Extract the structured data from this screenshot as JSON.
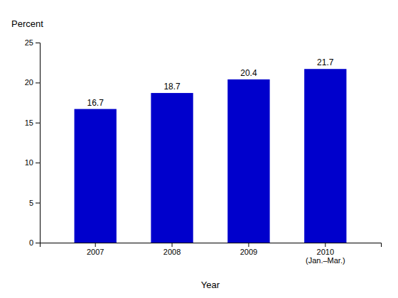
{
  "chart_data": {
    "type": "bar",
    "categories": [
      "2007",
      "2008",
      "2009",
      "2010\n(Jan.–Mar.)"
    ],
    "values": [
      16.7,
      18.7,
      20.4,
      21.7
    ],
    "color": "#0000cc",
    "xlabel": "Year",
    "ylabel": "Percent",
    "ylim": [
      0,
      25
    ],
    "yticks": [
      0,
      5,
      10,
      15,
      20,
      25
    ],
    "grid": false,
    "data_labels": true
  }
}
